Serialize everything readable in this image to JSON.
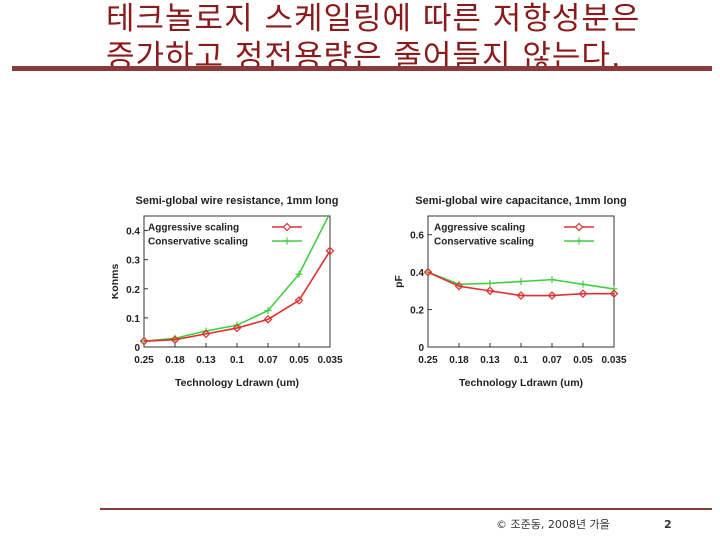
{
  "slide": {
    "title_line1": "테크놀로지 스케일링에 따른 저항성분은",
    "title_line2": "증가하고 정전용량은 줄어들지 않는다.",
    "footer": "© 조준동, 2008년 가을",
    "page_number": "2"
  },
  "colors": {
    "title": "#8B1A1A",
    "rule": "#8B3A3A",
    "aggressive": "#e03030",
    "conservative": "#40d040"
  },
  "chart_data": [
    {
      "type": "line",
      "title": "Semi-global wire resistance, 1mm long",
      "xlabel": "Technology Ldrawn (um)",
      "ylabel": "Kohms",
      "categories": [
        "0.25",
        "0.18",
        "0.13",
        "0.1",
        "0.07",
        "0.05",
        "0.035"
      ],
      "ylim": [
        0,
        0.45
      ],
      "yticks": [
        "0",
        "0.1",
        "0.2",
        "0.3",
        "0.4"
      ],
      "yticks_values": [
        0,
        0.1,
        0.2,
        0.3,
        0.4
      ],
      "legend_position": "top-left",
      "series": [
        {
          "name": "Aggressive scaling",
          "marker": "diamond",
          "values": [
            0.02,
            0.025,
            0.045,
            0.065,
            0.095,
            0.16,
            0.33
          ]
        },
        {
          "name": "Conservative scaling",
          "marker": "plus",
          "values": [
            0.02,
            0.03,
            0.055,
            0.075,
            0.125,
            0.25,
            0.46
          ]
        }
      ]
    },
    {
      "type": "line",
      "title": "Semi-global wire capacitance, 1mm long",
      "xlabel": "Technology Ldrawn (um)",
      "ylabel": "pF",
      "categories": [
        "0.25",
        "0.18",
        "0.13",
        "0.1",
        "0.07",
        "0.05",
        "0.035"
      ],
      "ylim": [
        0,
        0.7
      ],
      "yticks": [
        "0",
        "0.2",
        "0.4",
        "0.6"
      ],
      "yticks_values": [
        0,
        0.2,
        0.4,
        0.6
      ],
      "legend_position": "top-right",
      "series": [
        {
          "name": "Aggressive scaling",
          "marker": "diamond",
          "values": [
            0.4,
            0.325,
            0.3,
            0.275,
            0.275,
            0.285,
            0.285
          ]
        },
        {
          "name": "Conservative scaling",
          "marker": "plus",
          "values": [
            0.4,
            0.335,
            0.34,
            0.35,
            0.36,
            0.335,
            0.31
          ]
        }
      ]
    }
  ]
}
